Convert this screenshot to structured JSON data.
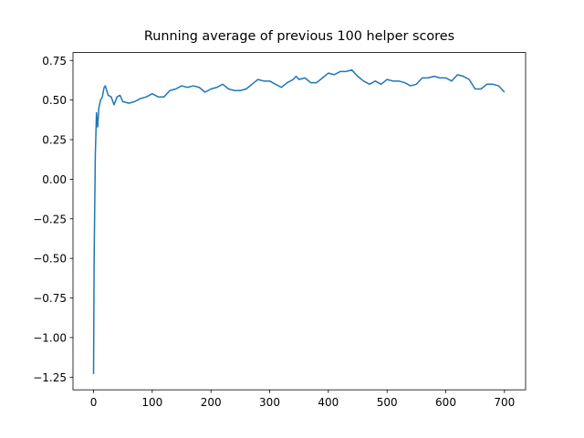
{
  "chart_data": {
    "type": "line",
    "title": "Running average of previous 100 helper scores",
    "x": [
      0,
      1,
      3,
      5,
      7,
      9,
      12,
      15,
      18,
      20,
      25,
      30,
      35,
      40,
      45,
      50,
      60,
      70,
      80,
      90,
      100,
      110,
      120,
      130,
      140,
      150,
      160,
      170,
      180,
      190,
      200,
      210,
      220,
      230,
      240,
      250,
      260,
      270,
      280,
      290,
      300,
      310,
      320,
      330,
      340,
      345,
      350,
      360,
      370,
      380,
      390,
      400,
      410,
      420,
      430,
      440,
      450,
      460,
      470,
      480,
      490,
      500,
      510,
      520,
      530,
      540,
      550,
      560,
      570,
      580,
      590,
      600,
      610,
      620,
      630,
      640,
      650,
      660,
      670,
      680,
      690,
      700
    ],
    "series": [
      {
        "color": "#1f77b4",
        "values": [
          -1.23,
          -0.5,
          0.15,
          0.42,
          0.33,
          0.45,
          0.5,
          0.52,
          0.58,
          0.59,
          0.53,
          0.52,
          0.47,
          0.52,
          0.53,
          0.49,
          0.48,
          0.49,
          0.51,
          0.52,
          0.54,
          0.52,
          0.52,
          0.56,
          0.57,
          0.59,
          0.58,
          0.59,
          0.58,
          0.55,
          0.57,
          0.58,
          0.6,
          0.57,
          0.56,
          0.56,
          0.57,
          0.6,
          0.63,
          0.62,
          0.62,
          0.6,
          0.58,
          0.61,
          0.63,
          0.65,
          0.63,
          0.64,
          0.61,
          0.61,
          0.64,
          0.67,
          0.66,
          0.68,
          0.68,
          0.69,
          0.65,
          0.62,
          0.6,
          0.62,
          0.6,
          0.63,
          0.62,
          0.62,
          0.61,
          0.59,
          0.6,
          0.64,
          0.64,
          0.65,
          0.64,
          0.64,
          0.62,
          0.66,
          0.65,
          0.63,
          0.57,
          0.57,
          0.6,
          0.6,
          0.59,
          0.55
        ]
      }
    ],
    "xlim": [
      -35,
      736
    ],
    "xticks": [
      0,
      100,
      200,
      300,
      400,
      500,
      600,
      700
    ],
    "ylim": [
      -1.33,
      0.8
    ],
    "yticks": [
      {
        "value": -1.25,
        "label": "−1.25"
      },
      {
        "value": -1.0,
        "label": "−1.00"
      },
      {
        "value": -0.75,
        "label": "−0.75"
      },
      {
        "value": -0.5,
        "label": "−0.50"
      },
      {
        "value": -0.25,
        "label": "−0.25"
      },
      {
        "value": 0,
        "label": "0.00"
      },
      0.25,
      {
        "value": 0.5,
        "label": "0.50"
      },
      0.75
    ]
  }
}
